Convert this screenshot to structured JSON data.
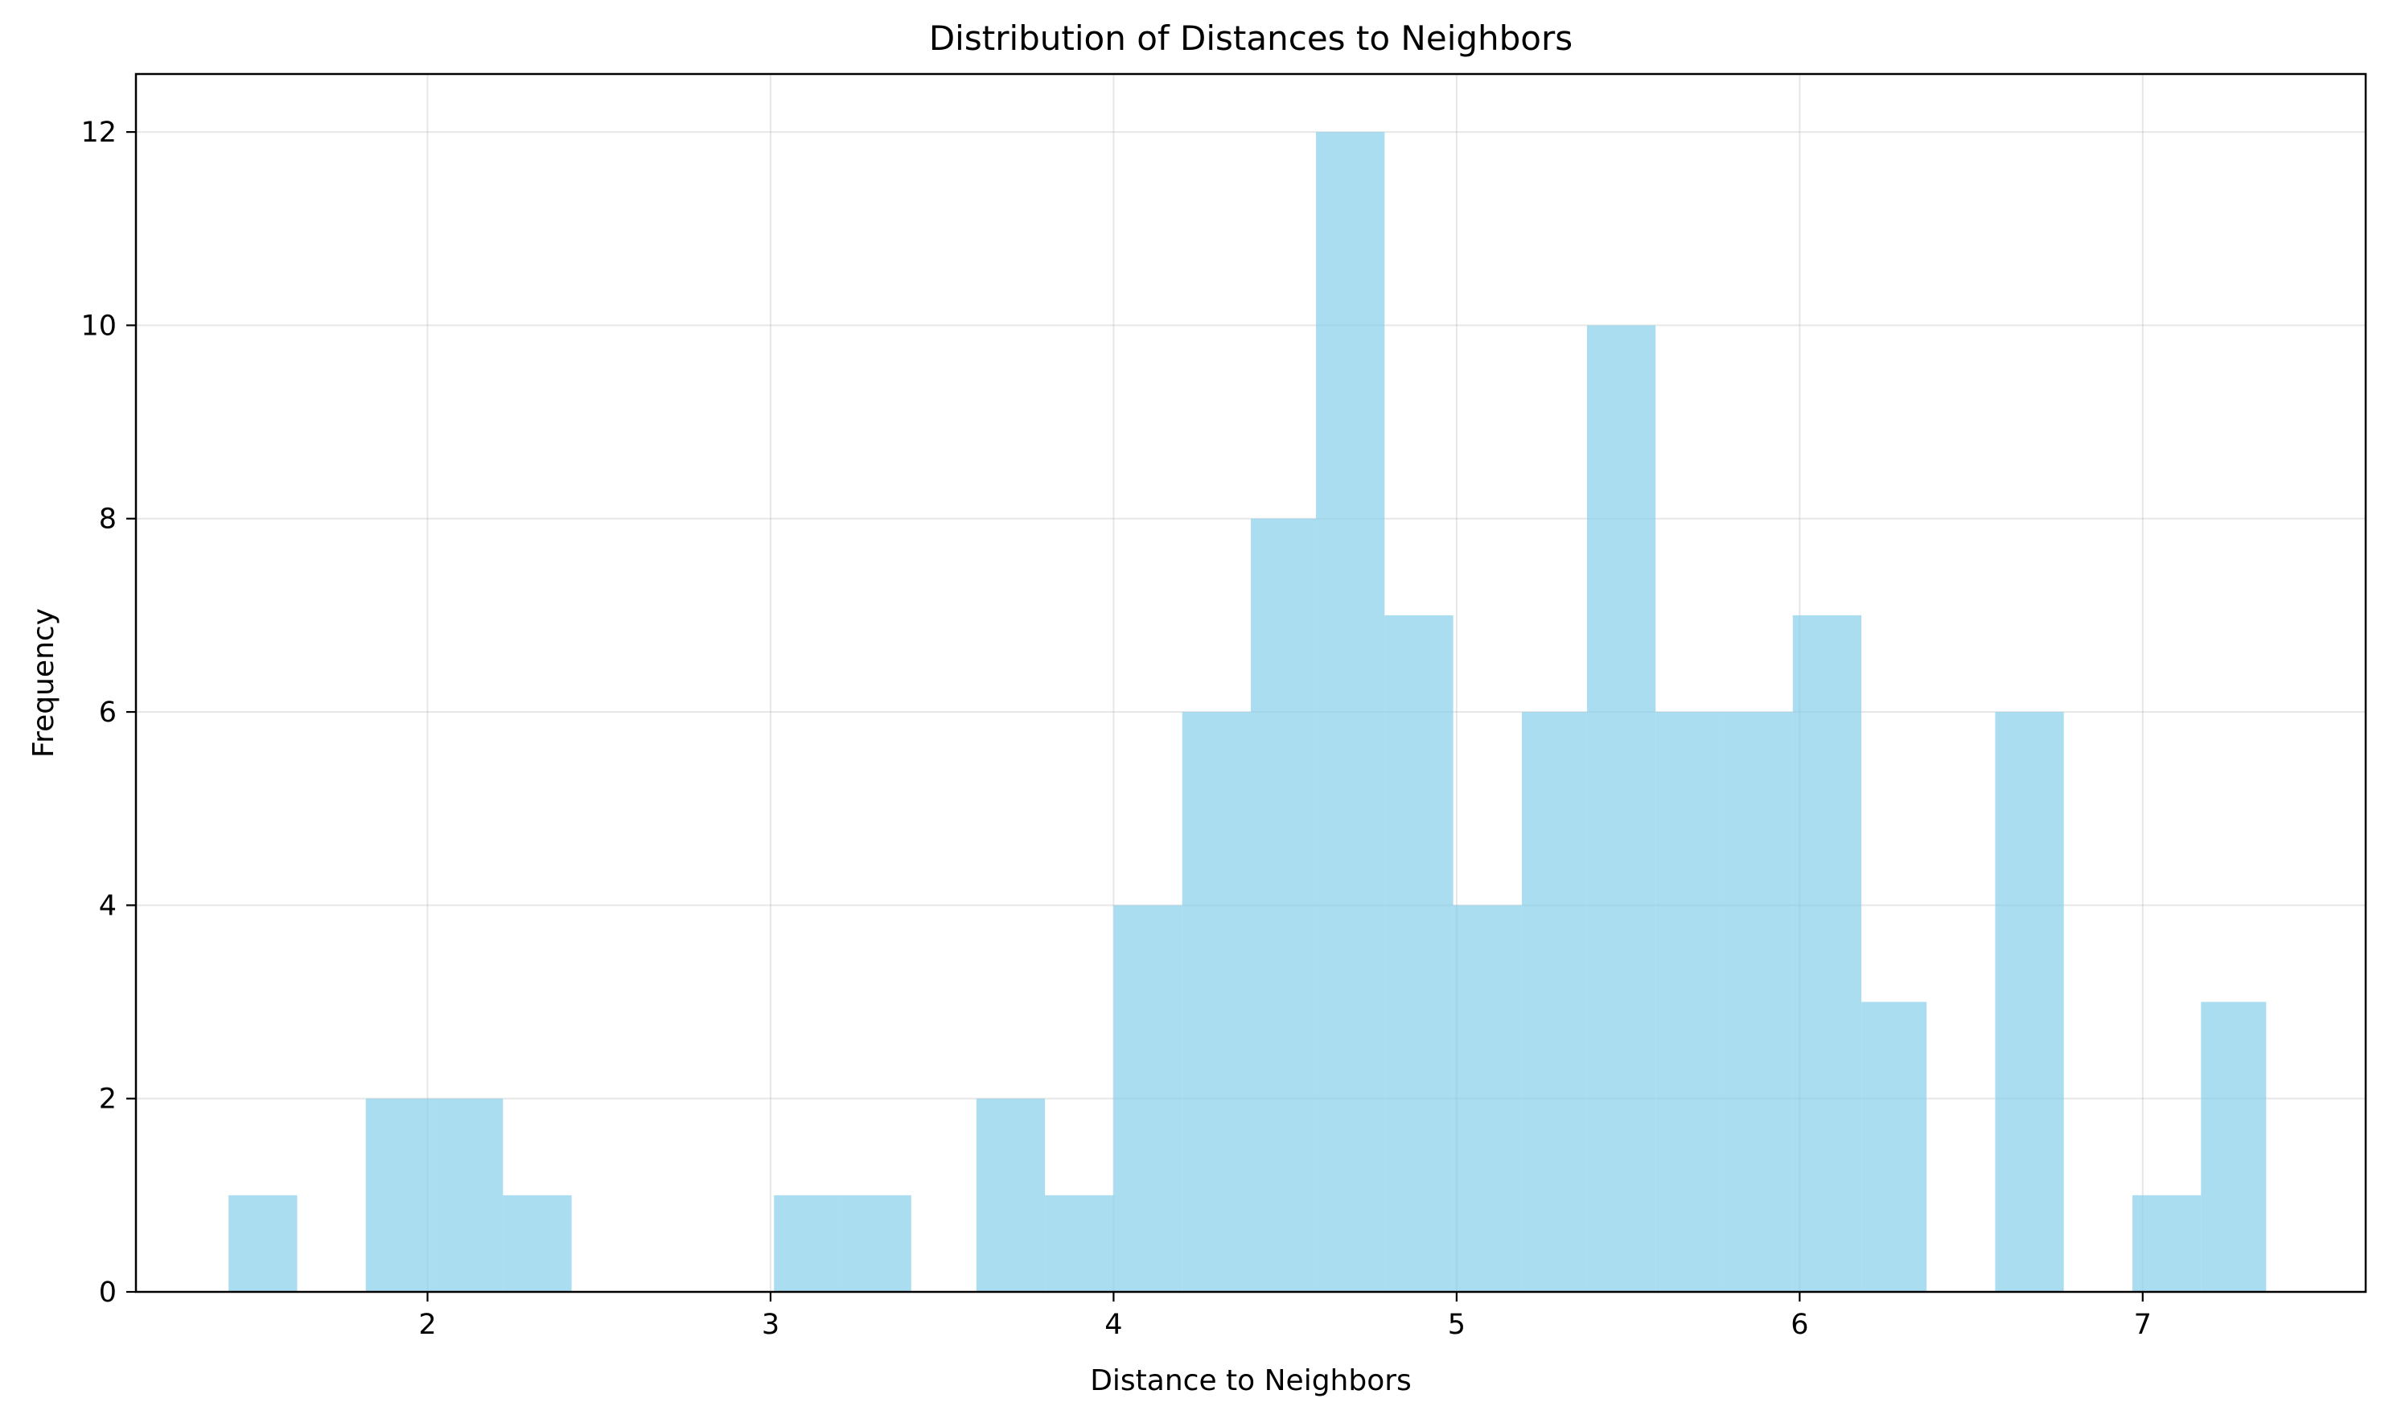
{
  "chart_data": {
    "type": "bar",
    "subtype": "histogram",
    "title": "Distribution of Distances to Neighbors",
    "xlabel": "Distance to Neighbors",
    "ylabel": "Frequency",
    "xlim": [
      1.15,
      7.65
    ],
    "ylim": [
      0,
      12.6
    ],
    "x_ticks": [
      2,
      3,
      4,
      5,
      6,
      7
    ],
    "y_ticks": [
      0,
      2,
      4,
      6,
      8,
      10,
      12
    ],
    "grid": true,
    "bar_color": "#87CEEB",
    "bar_alpha": 0.7,
    "bins": [
      {
        "x0": 1.42,
        "x1": 1.62,
        "count": 1
      },
      {
        "x0": 1.62,
        "x1": 1.82,
        "count": 0
      },
      {
        "x0": 1.82,
        "x1": 2.02,
        "count": 2
      },
      {
        "x0": 2.02,
        "x1": 2.22,
        "count": 2
      },
      {
        "x0": 2.22,
        "x1": 2.42,
        "count": 1
      },
      {
        "x0": 2.42,
        "x1": 2.61,
        "count": 0
      },
      {
        "x0": 2.61,
        "x1": 2.81,
        "count": 0
      },
      {
        "x0": 2.81,
        "x1": 3.01,
        "count": 0
      },
      {
        "x0": 3.01,
        "x1": 3.21,
        "count": 1
      },
      {
        "x0": 3.21,
        "x1": 3.41,
        "count": 1
      },
      {
        "x0": 3.41,
        "x1": 3.6,
        "count": 0
      },
      {
        "x0": 3.6,
        "x1": 3.8,
        "count": 2
      },
      {
        "x0": 3.8,
        "x1": 4.0,
        "count": 1
      },
      {
        "x0": 4.0,
        "x1": 4.2,
        "count": 4
      },
      {
        "x0": 4.2,
        "x1": 4.4,
        "count": 6
      },
      {
        "x0": 4.4,
        "x1": 4.59,
        "count": 8
      },
      {
        "x0": 4.59,
        "x1": 4.79,
        "count": 12
      },
      {
        "x0": 4.79,
        "x1": 4.99,
        "count": 7
      },
      {
        "x0": 4.99,
        "x1": 5.19,
        "count": 4
      },
      {
        "x0": 5.19,
        "x1": 5.38,
        "count": 6
      },
      {
        "x0": 5.38,
        "x1": 5.58,
        "count": 10
      },
      {
        "x0": 5.58,
        "x1": 5.78,
        "count": 6
      },
      {
        "x0": 5.78,
        "x1": 5.98,
        "count": 6
      },
      {
        "x0": 5.98,
        "x1": 6.18,
        "count": 7
      },
      {
        "x0": 6.18,
        "x1": 6.37,
        "count": 3
      },
      {
        "x0": 6.37,
        "x1": 6.57,
        "count": 0
      },
      {
        "x0": 6.57,
        "x1": 6.77,
        "count": 6
      },
      {
        "x0": 6.77,
        "x1": 6.97,
        "count": 0
      },
      {
        "x0": 6.97,
        "x1": 7.17,
        "count": 1
      },
      {
        "x0": 7.17,
        "x1": 7.36,
        "count": 3
      }
    ]
  }
}
